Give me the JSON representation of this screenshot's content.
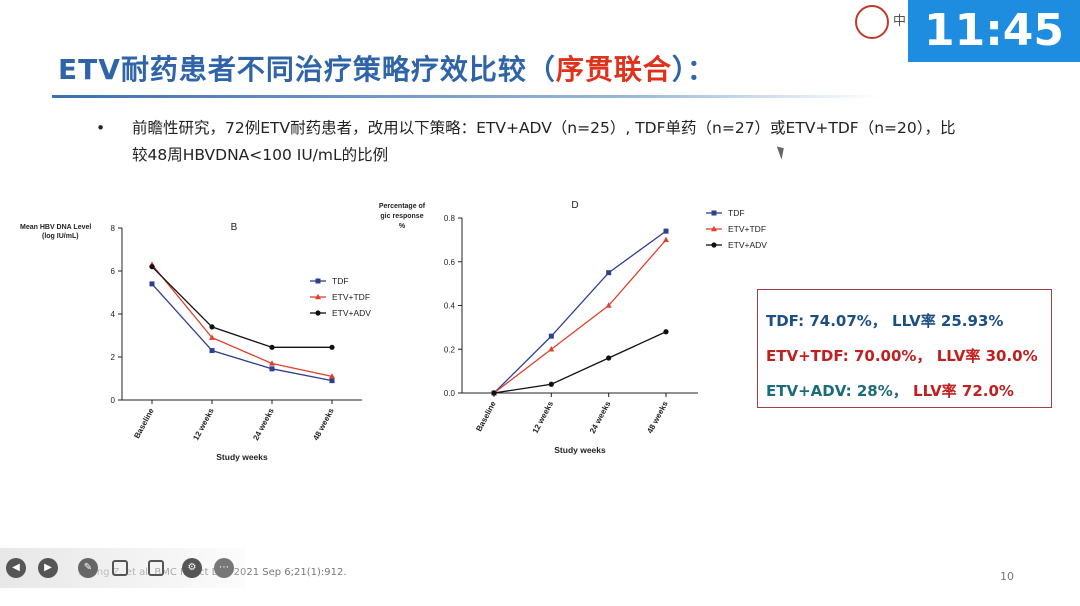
{
  "header": {
    "title_main": "ETV耐药患者不同治疗策略疗效比较（",
    "title_highlight": "序贯联合",
    "title_end": "）：",
    "clock": "11:45"
  },
  "bullet": {
    "symbol": "•",
    "text": "前瞻性研究，72例ETV耐药患者，改用以下策略：ETV+ADV（n=25）, TDF单药（n=27）或ETV+TDF（n=20），比较48周HBVDNA<100 IU/mL的比例"
  },
  "results": {
    "line1": {
      "label": "TDF: 74.07%，",
      "llv": "LLV率 25.93%"
    },
    "line2": {
      "label": "ETV+TDF: 70.00%，",
      "llv": "LLV率 30.0%"
    },
    "line3": {
      "label": "ETV+ADV: 28%，",
      "llv": "LLV率 72.0%"
    }
  },
  "footer": {
    "citation": "Shang Z, et al. BMC Infect Dis. 2021 Sep 6;21(1):912.",
    "page_number": "10"
  },
  "toolbar": {
    "icons": [
      "prev-icon",
      "next-icon",
      "pen-icon",
      "zoom-icon",
      "subtitle-icon",
      "options-icon",
      "more-icon"
    ]
  },
  "colors": {
    "tdf": "#2f3f8f",
    "etv_tdf": "#e04030",
    "etv_adv": "#111111",
    "title": "#2f64a8",
    "highlight": "#e0321a"
  },
  "chart_data": [
    {
      "type": "line",
      "title": "B",
      "ylabel": "Mean HBV DNA Level (log IU/mL)",
      "xlabel": "Study weeks",
      "categories": [
        "Baseline",
        "12 weeks",
        "24 weeks",
        "48 weeks"
      ],
      "ylim": [
        0,
        8
      ],
      "yticks": [
        "0",
        "2",
        "4",
        "6",
        "8"
      ],
      "legend_position": "right",
      "series": [
        {
          "name": "TDF",
          "marker": "square",
          "color": "#2f3f8f",
          "values": [
            5.4,
            2.3,
            1.45,
            0.9
          ]
        },
        {
          "name": "ETV+TDF",
          "marker": "triangle",
          "color": "#e04030",
          "values": [
            6.3,
            2.9,
            1.7,
            1.1
          ]
        },
        {
          "name": "ETV+ADV",
          "marker": "circle",
          "color": "#111111",
          "values": [
            6.2,
            3.4,
            2.45,
            2.45
          ]
        }
      ]
    },
    {
      "type": "line",
      "title": "D",
      "ylabel": "Percentage of gic response %",
      "xlabel": "Study weeks",
      "categories": [
        "Baseline",
        "12 weeks",
        "24 weeks",
        "48 weeks"
      ],
      "ylim": [
        0,
        0.8
      ],
      "yticks": [
        "0.0",
        "0.2",
        "0.4",
        "0.6",
        "0.8"
      ],
      "legend_position": "top-right",
      "series": [
        {
          "name": "TDF",
          "marker": "square",
          "color": "#2f3f8f",
          "values": [
            0,
            0.26,
            0.55,
            0.74
          ]
        },
        {
          "name": "ETV+TDF",
          "marker": "triangle",
          "color": "#e04030",
          "values": [
            0,
            0.2,
            0.4,
            0.7
          ]
        },
        {
          "name": "ETV+ADV",
          "marker": "circle",
          "color": "#111111",
          "values": [
            0,
            0.04,
            0.16,
            0.28
          ]
        }
      ]
    }
  ]
}
